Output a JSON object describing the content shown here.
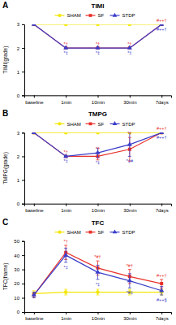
{
  "chart_data": [
    {
      "type": "line",
      "panel_label": "A",
      "title": "TIMI",
      "y_label": "TIMI(grade)",
      "categories": [
        "baseline",
        "1min",
        "10min",
        "30min",
        "7days"
      ],
      "ylim": [
        0,
        3
      ],
      "yticks": [
        0,
        1,
        2,
        3
      ],
      "grid": false,
      "series": [
        {
          "name": "SHAM",
          "color": "#f2e600",
          "marker": "circle",
          "values": [
            3,
            3,
            3,
            3,
            3
          ]
        },
        {
          "name": "SF",
          "color": "#e8302a",
          "marker": "square",
          "values": [
            3,
            2,
            2,
            2,
            3
          ],
          "annotations": [
            null,
            "*†",
            "*†",
            "*†",
            "#++†"
          ]
        },
        {
          "name": "STDP",
          "color": "#3b3ec9",
          "marker": "triangle",
          "values": [
            3,
            2,
            2,
            2,
            3
          ],
          "annotations": [
            null,
            "*‡",
            "*‡",
            "*‡",
            "#++†"
          ]
        }
      ]
    },
    {
      "type": "line",
      "panel_label": "B",
      "title": "TMPG",
      "y_label": "TMPG(grade)",
      "categories": [
        "baseline",
        "1min",
        "10min",
        "30min",
        "7days"
      ],
      "ylim": [
        0,
        3
      ],
      "yticks": [
        0,
        1,
        2,
        3
      ],
      "grid": false,
      "series": [
        {
          "name": "SHAM",
          "color": "#f2e600",
          "marker": "circle",
          "values": [
            3,
            3,
            3,
            3,
            3
          ],
          "errors": [
            0,
            0,
            0,
            0,
            0
          ]
        },
        {
          "name": "SF",
          "color": "#e8302a",
          "marker": "square",
          "values": [
            3,
            2,
            2,
            2.3,
            3
          ],
          "errors": [
            0,
            0,
            0.15,
            0.5,
            0
          ],
          "annotations": [
            null,
            "*†",
            "*†",
            "*†",
            "#++†"
          ]
        },
        {
          "name": "STDP",
          "color": "#3b3ec9",
          "marker": "triangle",
          "values": [
            3,
            2,
            2.15,
            2.5,
            3
          ],
          "errors": [
            0,
            0,
            0.2,
            0.5,
            0
          ],
          "annotations": [
            null,
            "*‡",
            "*‡",
            "*‡#",
            "#++†"
          ]
        }
      ]
    },
    {
      "type": "line",
      "panel_label": "C",
      "title": "TFC",
      "y_label": "TFC(frame)",
      "categories": [
        "baseline",
        "1min",
        "10min",
        "30min",
        "7days"
      ],
      "ylim": [
        0,
        50
      ],
      "yticks": [
        0,
        10,
        20,
        30,
        40,
        50
      ],
      "grid": false,
      "series": [
        {
          "name": "SHAM",
          "color": "#f2e600",
          "marker": "circle",
          "values": [
            13,
            14,
            14,
            14,
            14
          ],
          "errors": [
            2,
            2,
            2,
            2,
            2
          ]
        },
        {
          "name": "SF",
          "color": "#e8302a",
          "marker": "square",
          "values": [
            12,
            42,
            31,
            25,
            20
          ],
          "errors": [
            2,
            5,
            5,
            5,
            3
          ],
          "annotations": [
            null,
            "*†",
            "*#†",
            "*#†",
            "#++†"
          ]
        },
        {
          "name": "STDP",
          "color": "#3b3ec9",
          "marker": "triangle",
          "values": [
            12,
            40,
            28,
            22,
            15
          ],
          "errors": [
            2,
            5,
            5,
            5,
            3
          ],
          "annotations": [
            null,
            "*‡",
            "*‡",
            "*#‡",
            "#++§"
          ]
        }
      ]
    }
  ]
}
